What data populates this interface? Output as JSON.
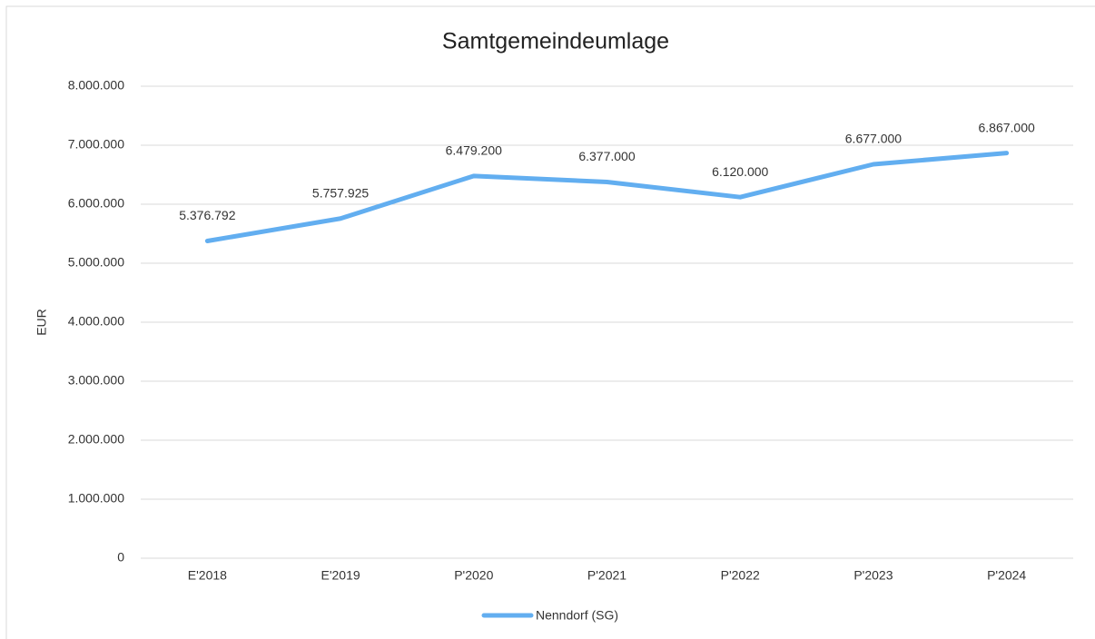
{
  "chart_data": {
    "type": "line",
    "title": "Samtgemeindeumlage",
    "ylabel": "EUR",
    "categories": [
      "E'2018",
      "E'2019",
      "P'2020",
      "P'2021",
      "P'2022",
      "P'2023",
      "P'2024"
    ],
    "series": [
      {
        "name": "Nenndorf (SG)",
        "color": "#62aef0",
        "values": [
          5376792,
          5757925,
          6479200,
          6377000,
          6120000,
          6677000,
          6867000
        ],
        "value_labels": [
          "5.376.792",
          "5.757.925",
          "6.479.200",
          "6.377.000",
          "6.120.000",
          "6.677.000",
          "6.867.000"
        ]
      }
    ],
    "ylim": [
      0,
      8000000
    ],
    "yticks": [
      0,
      {
        "value": 1000000,
        "label": "1.000.000"
      },
      {
        "value": 2000000,
        "label": "2.000.000"
      },
      {
        "value": 3000000,
        "label": "3.000.000"
      },
      {
        "value": 4000000,
        "label": "4.000.000"
      },
      {
        "value": 5000000,
        "label": "5.000.000"
      },
      {
        "value": 6000000,
        "label": "6.000.000"
      },
      {
        "value": 7000000,
        "label": "7.000.000"
      },
      {
        "value": 8000000,
        "label": "8.000.000"
      }
    ],
    "grid": true,
    "legend": "bottom"
  }
}
